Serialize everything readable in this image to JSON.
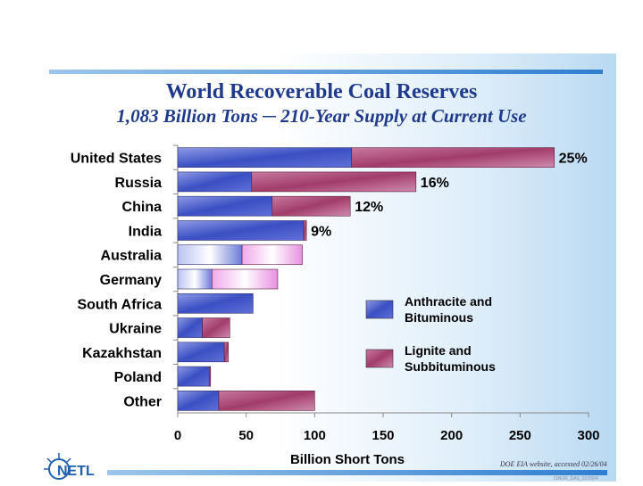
{
  "slide": {
    "title": "World Recoverable Coal Reserves",
    "subtitle": "1,083 Billion Tons ─ 210-Year Supply at Current Use",
    "source_note": "DOE EIA website, accessed 02/26/04",
    "logo_text": "NETL",
    "footer_code": "ISNOR_DAS_01/2004"
  },
  "colors": {
    "anthracite": "#3a4fc2",
    "lignite": "#a23c6a",
    "accent": "#1f3a8a"
  },
  "chart_data": {
    "type": "bar",
    "orientation": "horizontal",
    "stacked": true,
    "title": "World Recoverable Coal Reserves",
    "xlabel": "Billion Short Tons",
    "ylabel": "",
    "xlim": [
      0,
      300
    ],
    "xticks": [
      0,
      50,
      100,
      150,
      200,
      250,
      300
    ],
    "categories": [
      "United States",
      "Russia",
      "China",
      "India",
      "Australia",
      "Germany",
      "South Africa",
      "Ukraine",
      "Kazakhstan",
      "Poland",
      "Other"
    ],
    "series": [
      {
        "name": "Anthracite and Bituminous",
        "values": [
          127,
          54,
          69,
          92,
          47,
          25,
          55,
          18,
          34,
          23,
          30
        ]
      },
      {
        "name": "Lignite and Subbituminous",
        "values": [
          148,
          120,
          57,
          2,
          44,
          48,
          0,
          20,
          3,
          1,
          70
        ]
      }
    ],
    "bar_labels": [
      "25%",
      "16%",
      "12%",
      "9%",
      "",
      "",
      "",
      "",
      "",
      "",
      ""
    ],
    "legend": [
      "Anthracite and\nBituminous",
      "Lignite and\nSubbituminous"
    ],
    "legend_position": "right"
  }
}
